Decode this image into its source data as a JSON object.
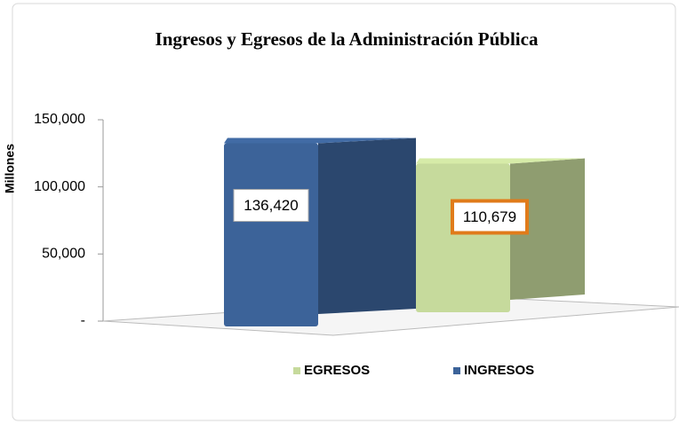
{
  "chart_data": {
    "type": "bar",
    "title": "Ingresos y Egresos de la Administración Pública",
    "y_label": "Millones",
    "categories": [
      null
    ],
    "series": [
      {
        "name": "INGRESOS",
        "color": "#3c6399",
        "values": [
          136420
        ],
        "value_labels": [
          "136,420"
        ]
      },
      {
        "name": "EGRESOS",
        "color": "#c6da9c",
        "values": [
          110679
        ],
        "value_labels": [
          "110,679"
        ]
      }
    ],
    "ylim": [
      0,
      150000
    ],
    "yticks": [
      {
        "value": 0,
        "label": "-"
      },
      {
        "value": 50000,
        "label": "50,000"
      },
      {
        "value": 100000,
        "label": "100,000"
      },
      {
        "value": 150000,
        "label": "150,000"
      }
    ],
    "legend": "bottom"
  }
}
